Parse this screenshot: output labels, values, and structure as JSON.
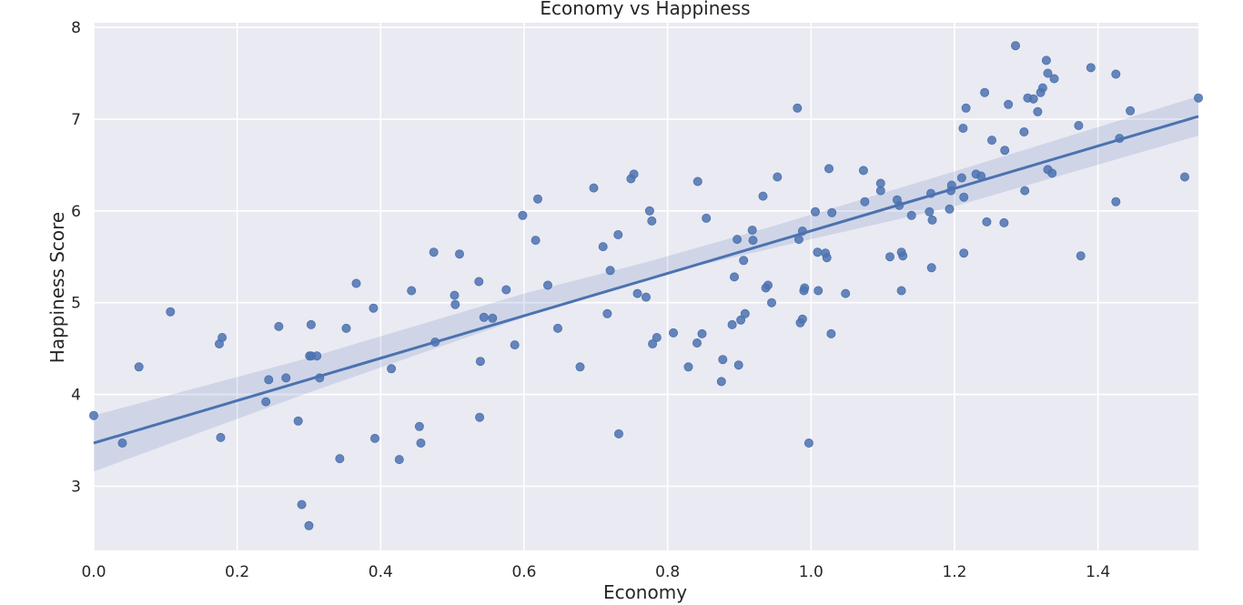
{
  "chart_data": {
    "type": "scatter",
    "title": "Economy vs Happiness",
    "xlabel": "Economy",
    "ylabel": "Happiness Score",
    "xlim": [
      0.0,
      1.54
    ],
    "ylim": [
      2.3,
      8.05
    ],
    "xticks": [
      "0.0",
      "0.2",
      "0.4",
      "0.6",
      "0.8",
      "1.0",
      "1.2",
      "1.4"
    ],
    "yticks": [
      "3",
      "4",
      "5",
      "6",
      "7",
      "8"
    ],
    "grid": true,
    "regression": {
      "line": [
        [
          0.0,
          3.47
        ],
        [
          1.54,
          7.03
        ]
      ],
      "ci_band": {
        "x": [
          0.0,
          0.3,
          0.6,
          0.77,
          0.95,
          1.2,
          1.54
        ],
        "lower": [
          3.16,
          4.02,
          4.84,
          5.27,
          5.6,
          6.05,
          6.82
        ],
        "upper": [
          3.77,
          4.4,
          5.1,
          5.44,
          5.84,
          6.43,
          7.25
        ]
      }
    },
    "points": {
      "x": [
        0.0,
        0.04,
        0.063,
        0.107,
        0.175,
        0.177,
        0.179,
        0.24,
        0.244,
        0.258,
        0.268,
        0.285,
        0.29,
        0.3,
        0.301,
        0.303,
        0.303,
        0.311,
        0.315,
        0.343,
        0.352,
        0.366,
        0.39,
        0.392,
        0.415,
        0.426,
        0.443,
        0.454,
        0.456,
        0.474,
        0.476,
        0.503,
        0.504,
        0.51,
        0.537,
        0.538,
        0.539,
        0.544,
        0.556,
        0.575,
        0.587,
        0.598,
        0.616,
        0.619,
        0.633,
        0.647,
        0.678,
        0.697,
        0.71,
        0.716,
        0.72,
        0.731,
        0.732,
        0.749,
        0.753,
        0.758,
        0.77,
        0.775,
        0.778,
        0.779,
        0.785,
        0.808,
        0.829,
        0.841,
        0.842,
        0.848,
        0.854,
        0.875,
        0.877,
        0.89,
        0.893,
        0.897,
        0.899,
        0.902,
        0.906,
        0.908,
        0.918,
        0.919,
        0.933,
        0.937,
        0.94,
        0.945,
        0.953,
        0.981,
        0.983,
        0.985,
        0.988,
        0.988,
        0.99,
        0.991,
        0.997,
        1.006,
        1.009,
        1.01,
        1.02,
        1.022,
        1.025,
        1.028,
        1.029,
        1.048,
        1.073,
        1.075,
        1.097,
        1.097,
        1.11,
        1.12,
        1.123,
        1.126,
        1.126,
        1.128,
        1.14,
        1.165,
        1.167,
        1.169,
        1.168,
        1.193,
        1.195,
        1.196,
        1.21,
        1.212,
        1.213,
        1.213,
        1.216,
        1.23,
        1.237,
        1.242,
        1.245,
        1.252,
        1.269,
        1.27,
        1.275,
        1.285,
        1.297,
        1.298,
        1.302,
        1.31,
        1.316,
        1.32,
        1.323,
        1.328,
        1.33,
        1.33,
        1.336,
        1.339,
        1.373,
        1.376,
        1.39,
        1.425,
        1.425,
        1.43,
        1.445,
        1.521,
        1.54
      ],
      "y": [
        3.77,
        3.47,
        4.3,
        4.9,
        4.55,
        3.53,
        4.62,
        3.92,
        4.16,
        4.74,
        4.18,
        3.71,
        2.8,
        2.57,
        4.42,
        4.76,
        4.42,
        4.42,
        4.18,
        3.3,
        4.72,
        5.21,
        4.94,
        3.52,
        4.28,
        3.29,
        5.13,
        3.65,
        3.47,
        5.55,
        4.57,
        5.08,
        4.98,
        5.53,
        5.23,
        3.75,
        4.36,
        4.84,
        4.83,
        5.14,
        4.54,
        5.95,
        5.68,
        6.13,
        5.19,
        4.72,
        4.3,
        6.25,
        5.61,
        4.88,
        5.35,
        5.74,
        3.57,
        6.35,
        6.4,
        5.1,
        5.06,
        6.0,
        5.89,
        4.55,
        4.62,
        4.67,
        4.3,
        4.56,
        6.32,
        4.66,
        5.92,
        4.14,
        4.38,
        4.76,
        5.28,
        5.69,
        4.32,
        4.81,
        5.46,
        4.88,
        5.79,
        5.68,
        6.16,
        5.16,
        5.19,
        5.0,
        6.37,
        7.12,
        5.69,
        4.78,
        4.82,
        5.78,
        5.13,
        5.16,
        3.47,
        5.99,
        5.55,
        5.13,
        5.54,
        5.49,
        6.46,
        4.66,
        5.98,
        5.1,
        6.44,
        6.1,
        6.22,
        6.3,
        5.5,
        6.12,
        6.06,
        5.13,
        5.55,
        5.51,
        5.95,
        5.99,
        6.19,
        5.9,
        5.38,
        6.02,
        6.22,
        6.28,
        6.36,
        6.9,
        5.54,
        6.15,
        7.12,
        6.4,
        6.38,
        7.29,
        5.88,
        6.77,
        5.87,
        6.66,
        7.16,
        7.8,
        6.86,
        6.22,
        7.23,
        7.22,
        7.08,
        7.29,
        7.34,
        7.64,
        6.45,
        7.5,
        6.41,
        7.44,
        6.93,
        5.51,
        7.56,
        7.49,
        6.1,
        6.79,
        7.09,
        6.37,
        7.23
      ]
    }
  }
}
